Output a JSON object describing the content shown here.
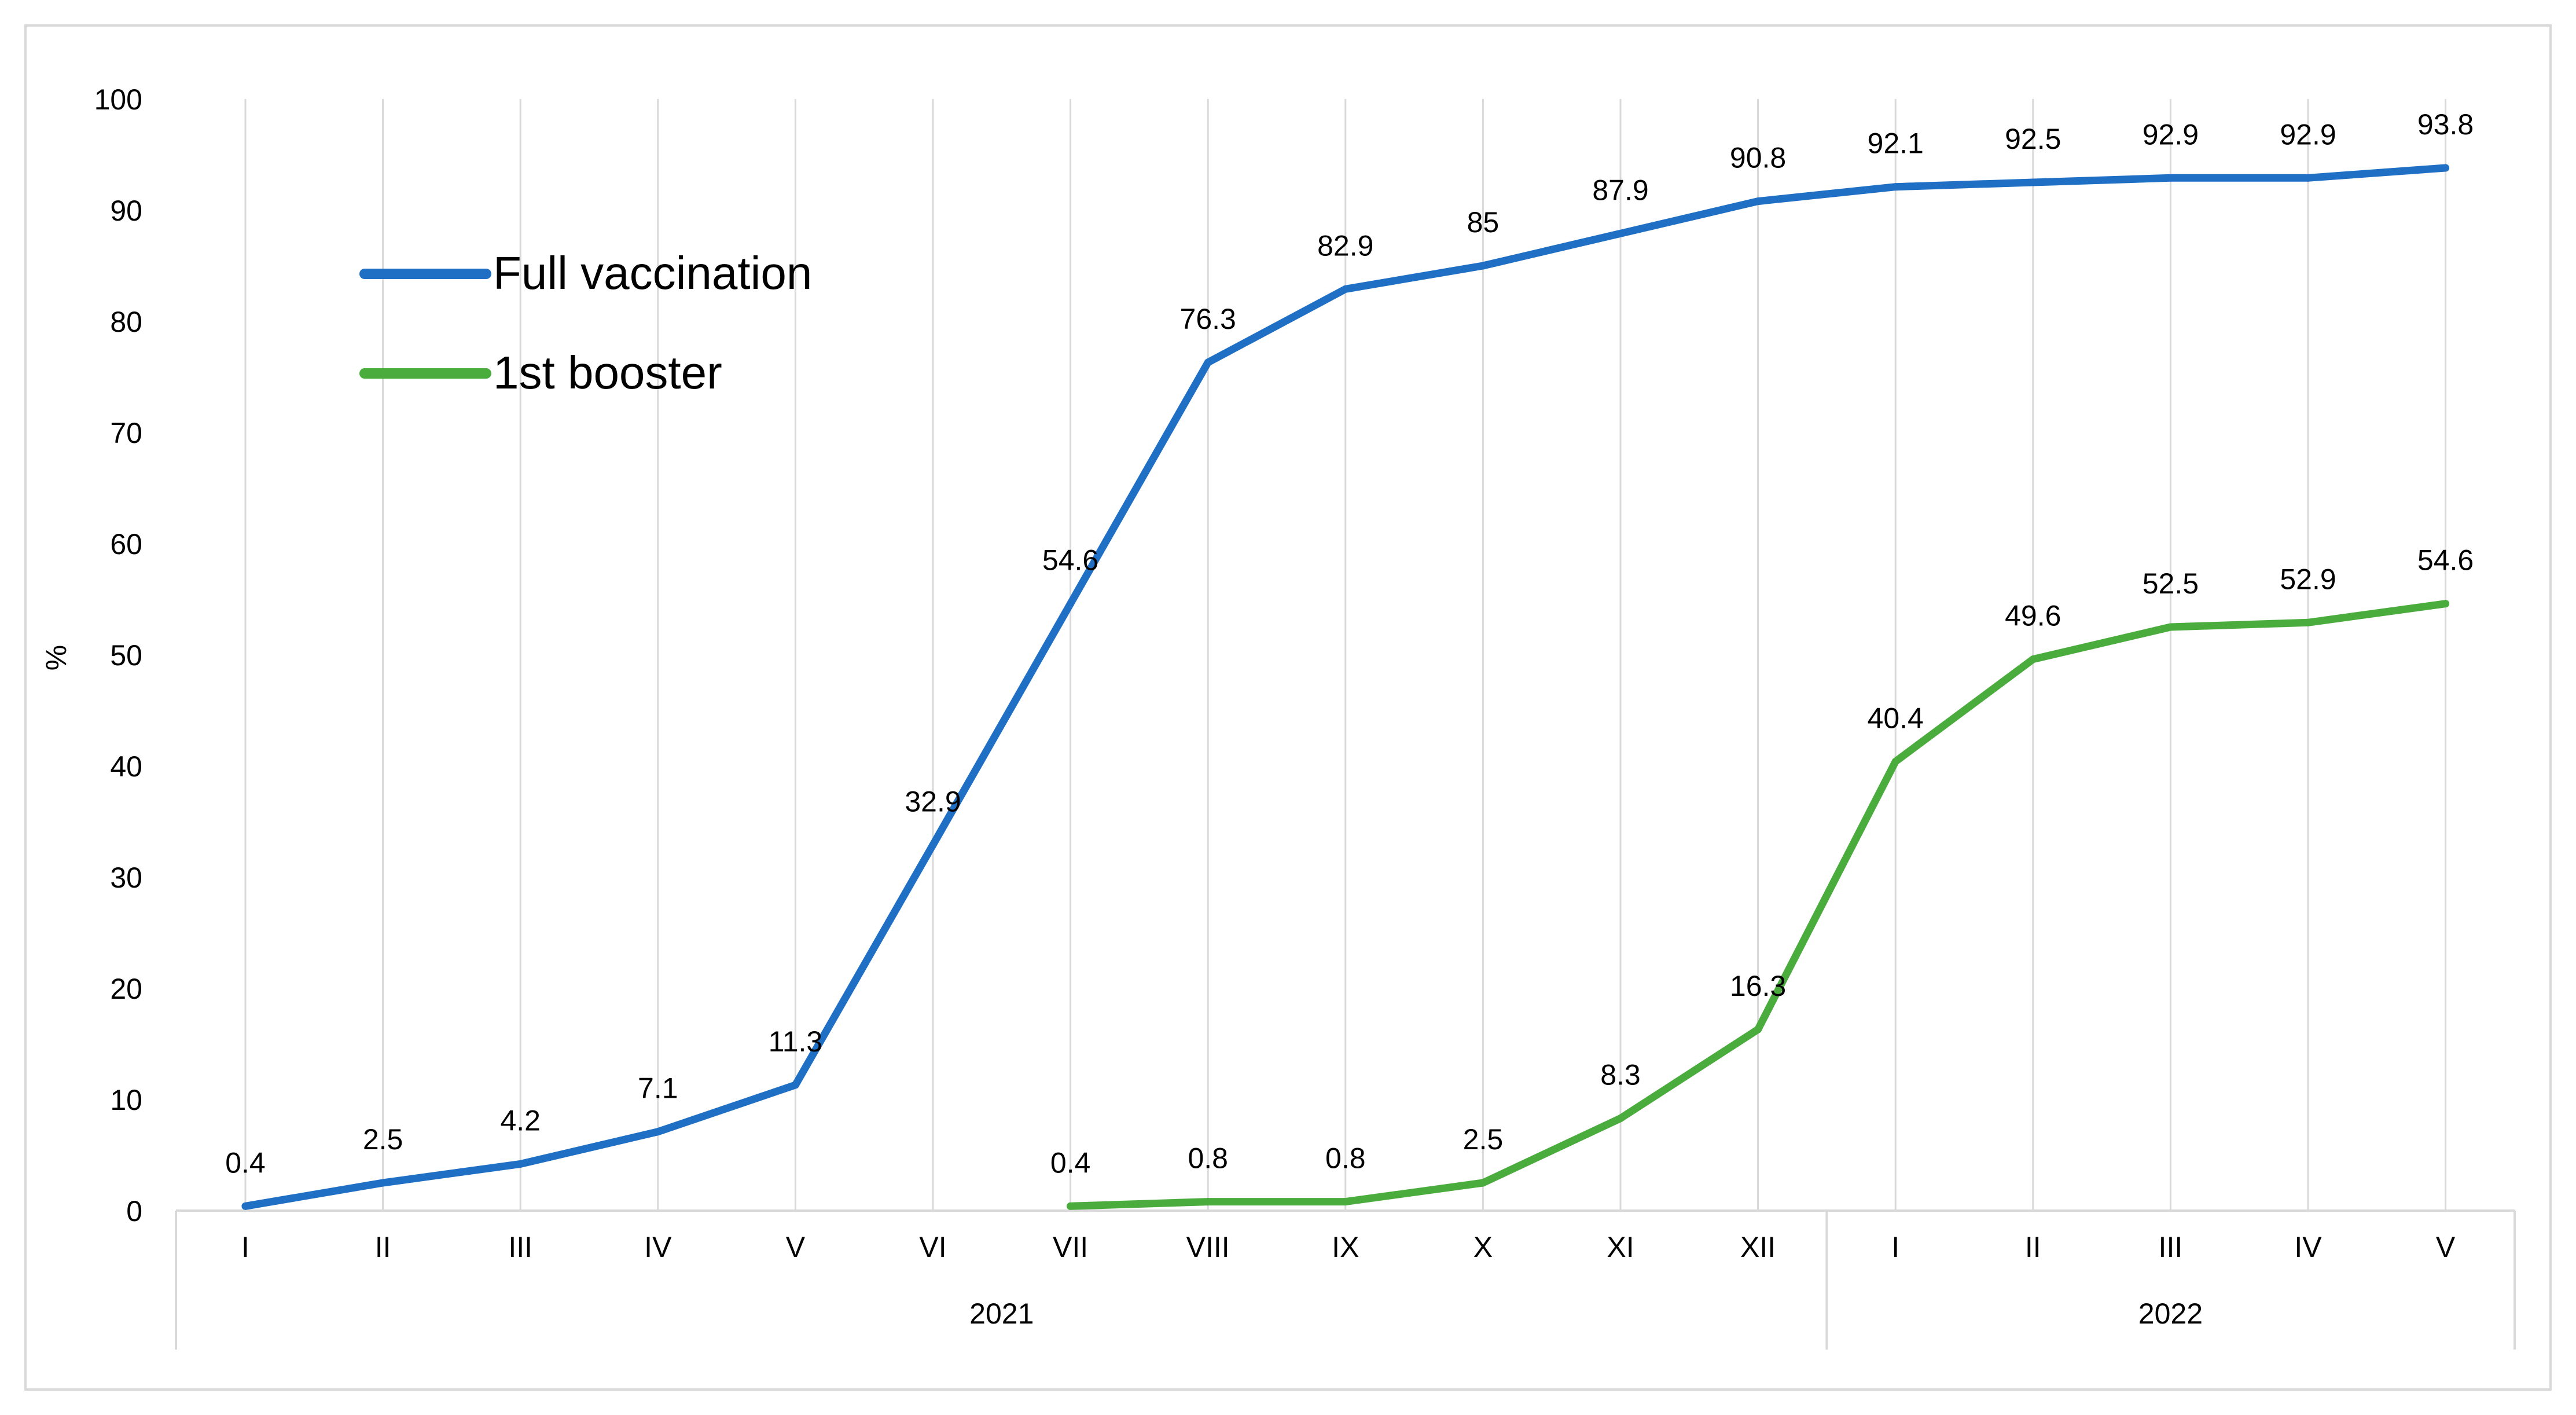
{
  "chart_data": {
    "type": "line",
    "title": "",
    "xlabel": "",
    "ylabel": "%",
    "ylim": [
      0,
      100
    ],
    "yticks": [
      "0",
      "10",
      "20",
      "30",
      "40",
      "50",
      "60",
      "70",
      "80",
      "90",
      "100"
    ],
    "grid": "vertical",
    "categories": [
      "I",
      "II",
      "III",
      "IV",
      "V",
      "VI",
      "VII",
      "VIII",
      "IX",
      "X",
      "XI",
      "XII",
      "I",
      "II",
      "III",
      "IV",
      "V"
    ],
    "groups": [
      {
        "label": "2021",
        "count": 12
      },
      {
        "label": "2022",
        "count": 5
      }
    ],
    "series": [
      {
        "name": "Full vaccination",
        "color": "#1f6fc5",
        "values": [
          0.4,
          2.5,
          4.2,
          7.1,
          11.3,
          32.9,
          54.6,
          76.3,
          82.9,
          85,
          87.9,
          90.8,
          92.1,
          92.5,
          92.9,
          92.9,
          93.8
        ],
        "labels": [
          "0.4",
          "2.5",
          "4.2",
          "7.1",
          "11.3",
          "32.9",
          "54.6",
          "76.3",
          "82.9",
          "85",
          "87.9",
          "90.8",
          "92.1",
          "92.5",
          "92.9",
          "92.9",
          "93.8"
        ]
      },
      {
        "name": "1st booster",
        "color": "#4aac3c",
        "values": [
          null,
          null,
          null,
          null,
          null,
          null,
          0.4,
          0.8,
          0.8,
          2.5,
          8.3,
          16.3,
          40.4,
          49.6,
          52.5,
          52.9,
          54.6
        ],
        "labels": [
          null,
          null,
          null,
          null,
          null,
          null,
          "0.4",
          "0.8",
          "0.8",
          "2.5",
          "8.3",
          "16.3",
          "40.4",
          "49.6",
          "52.5",
          "52.9",
          "54.6"
        ]
      }
    ],
    "legend": {
      "position": "top-left"
    }
  }
}
